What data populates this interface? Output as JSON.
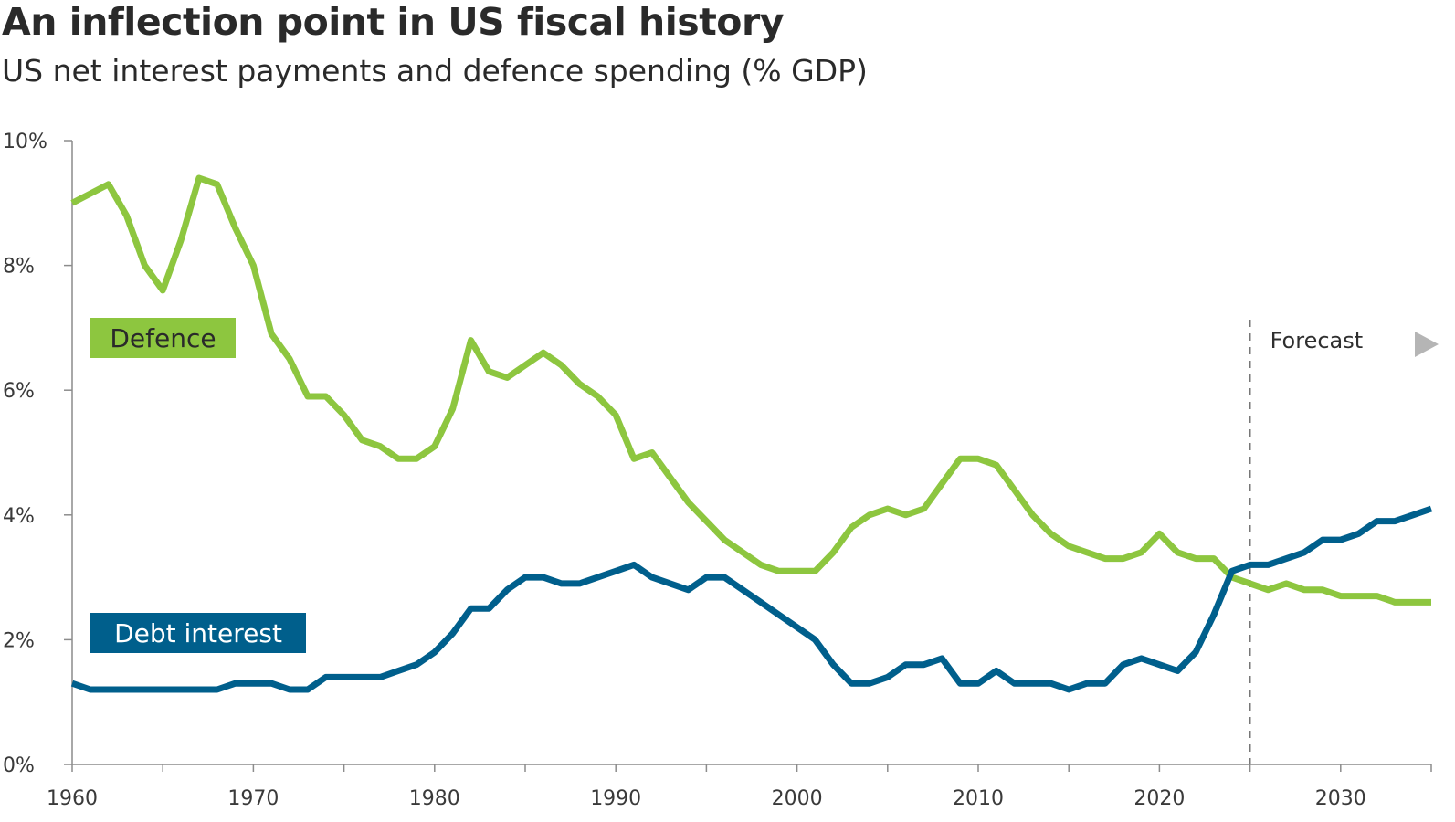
{
  "chart_data": {
    "type": "line",
    "title": "An inflection point in US fiscal history",
    "subtitle": "US net interest payments and defence spending (% GDP)",
    "x_ticks": [
      1960,
      1970,
      1980,
      1990,
      2000,
      2010,
      2020,
      2030
    ],
    "y_ticks": [
      "0%",
      "2%",
      "4%",
      "6%",
      "8%",
      "10%"
    ],
    "y_tick_values": [
      0,
      2,
      4,
      6,
      8,
      10
    ],
    "xlim": [
      1960,
      2035
    ],
    "ylim": [
      0,
      10
    ],
    "grid": false,
    "forecast": {
      "label": "Forecast",
      "start_year": 2025
    },
    "series": [
      {
        "name": "Defence",
        "color": "#8dc63f",
        "label_text_color": "#2a2a2a",
        "x": [
          1960,
          1962,
          1963,
          1964,
          1965,
          1966,
          1967,
          1968,
          1969,
          1970,
          1971,
          1972,
          1973,
          1974,
          1975,
          1976,
          1977,
          1978,
          1979,
          1980,
          1981,
          1982,
          1983,
          1984,
          1985,
          1986,
          1987,
          1988,
          1989,
          1990,
          1991,
          1992,
          1993,
          1994,
          1995,
          1996,
          1997,
          1998,
          1999,
          2000,
          2001,
          2002,
          2003,
          2004,
          2005,
          2006,
          2007,
          2008,
          2009,
          2010,
          2011,
          2012,
          2013,
          2014,
          2015,
          2016,
          2017,
          2018,
          2019,
          2020,
          2021,
          2022,
          2023,
          2024,
          2025,
          2026,
          2027,
          2028,
          2029,
          2030,
          2031,
          2032,
          2033,
          2034,
          2035
        ],
        "values": [
          9.0,
          9.3,
          8.8,
          8.0,
          7.6,
          8.4,
          9.4,
          9.3,
          8.6,
          8.0,
          6.9,
          6.5,
          5.9,
          5.9,
          5.6,
          5.2,
          5.1,
          4.9,
          4.9,
          5.1,
          5.7,
          6.8,
          6.3,
          6.2,
          6.4,
          6.6,
          6.4,
          6.1,
          5.9,
          5.6,
          4.9,
          5.0,
          4.6,
          4.2,
          3.9,
          3.6,
          3.4,
          3.2,
          3.1,
          3.1,
          3.1,
          3.4,
          3.8,
          4.0,
          4.1,
          4.0,
          4.1,
          4.5,
          4.9,
          4.9,
          4.8,
          4.4,
          4.0,
          3.7,
          3.5,
          3.4,
          3.3,
          3.3,
          3.4,
          3.7,
          3.4,
          3.3,
          3.3,
          3.0,
          2.9,
          2.8,
          2.9,
          2.8,
          2.8,
          2.7,
          2.7,
          2.7,
          2.6,
          2.6,
          2.6
        ]
      },
      {
        "name": "Debt interest",
        "color": "#005f8c",
        "label_text_color": "#ffffff",
        "x": [
          1960,
          1961,
          1962,
          1963,
          1964,
          1965,
          1966,
          1967,
          1968,
          1969,
          1970,
          1971,
          1972,
          1973,
          1974,
          1975,
          1976,
          1977,
          1978,
          1979,
          1980,
          1981,
          1982,
          1983,
          1984,
          1985,
          1986,
          1987,
          1988,
          1989,
          1990,
          1991,
          1992,
          1993,
          1994,
          1995,
          1996,
          1997,
          1998,
          1999,
          2000,
          2001,
          2002,
          2003,
          2004,
          2005,
          2006,
          2007,
          2008,
          2009,
          2010,
          2011,
          2012,
          2013,
          2014,
          2015,
          2016,
          2017,
          2018,
          2019,
          2020,
          2021,
          2022,
          2023,
          2024,
          2025,
          2026,
          2027,
          2028,
          2029,
          2030,
          2031,
          2032,
          2033,
          2034,
          2035
        ],
        "values": [
          1.3,
          1.2,
          1.2,
          1.2,
          1.2,
          1.2,
          1.2,
          1.2,
          1.2,
          1.3,
          1.3,
          1.3,
          1.2,
          1.2,
          1.4,
          1.4,
          1.4,
          1.4,
          1.5,
          1.6,
          1.8,
          2.1,
          2.5,
          2.5,
          2.8,
          3.0,
          3.0,
          2.9,
          2.9,
          3.0,
          3.1,
          3.2,
          3.0,
          2.9,
          2.8,
          3.0,
          3.0,
          2.8,
          2.6,
          2.4,
          2.2,
          2.0,
          1.6,
          1.3,
          1.3,
          1.4,
          1.6,
          1.6,
          1.7,
          1.3,
          1.3,
          1.5,
          1.3,
          1.3,
          1.3,
          1.2,
          1.3,
          1.3,
          1.6,
          1.7,
          1.6,
          1.5,
          1.8,
          2.4,
          3.1,
          3.2,
          3.2,
          3.3,
          3.4,
          3.6,
          3.6,
          3.7,
          3.9,
          3.9,
          4.0,
          4.1
        ]
      }
    ]
  }
}
